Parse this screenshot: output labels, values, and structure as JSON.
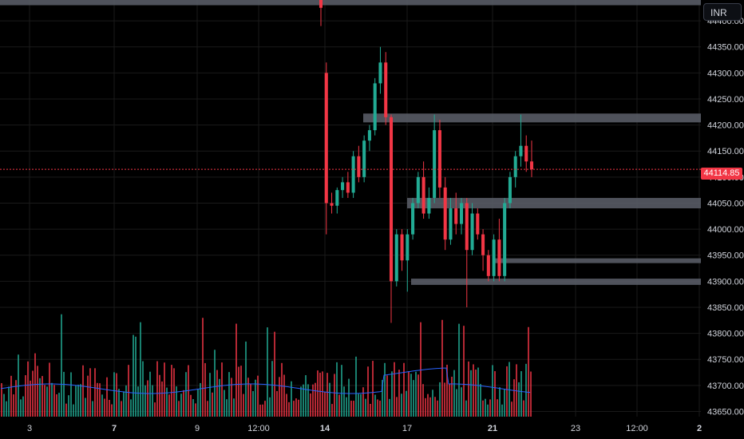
{
  "currency_label": "INR",
  "last_price_label": "44114.85",
  "colors": {
    "up": "#22ab94",
    "down": "#f23645",
    "zone": "#5d606b",
    "ma": "#2962ff",
    "last_price": "#f23645"
  },
  "chart_data": {
    "type": "candlestick",
    "y_axis": {
      "ticks": [
        "43650.00",
        "43700.00",
        "43750.00",
        "43800.00",
        "43850.00",
        "43900.00",
        "43950.00",
        "44000.00",
        "44050.00",
        "44100.00",
        "44150.00",
        "44200.00",
        "44250.00",
        "44300.00",
        "44350.00",
        "44400.00"
      ],
      "range": [
        43640,
        44440
      ]
    },
    "x_axis": {
      "ticks": [
        {
          "label": "3",
          "bold": false
        },
        {
          "label": "7",
          "bold": true
        },
        {
          "label": "9",
          "bold": false
        },
        {
          "label": "12:00",
          "bold": false
        },
        {
          "label": "14",
          "bold": true
        },
        {
          "label": "17",
          "bold": false
        },
        {
          "label": "21",
          "bold": true
        },
        {
          "label": "23",
          "bold": false
        },
        {
          "label": "12:00",
          "bold": false
        },
        {
          "label": "2",
          "bold": true
        }
      ]
    },
    "last_price": 44114.85,
    "zones": [
      {
        "from": 44430,
        "to": 44445,
        "extends": "full"
      },
      {
        "from": 44205,
        "to": 44222
      },
      {
        "from": 44040,
        "to": 44060
      },
      {
        "from": 43937,
        "to": 43944
      },
      {
        "from": 43893,
        "to": 43905
      }
    ],
    "candles": [
      {
        "o": 44440,
        "h": 44450,
        "l": 44390,
        "c": 44425
      },
      {
        "o": 44300,
        "h": 44320,
        "l": 43990,
        "c": 44050
      },
      {
        "o": 44050,
        "h": 44070,
        "l": 44030,
        "c": 44045
      },
      {
        "o": 44045,
        "h": 44080,
        "l": 44030,
        "c": 44075
      },
      {
        "o": 44075,
        "h": 44100,
        "l": 44060,
        "c": 44090
      },
      {
        "o": 44090,
        "h": 44110,
        "l": 44060,
        "c": 44070
      },
      {
        "o": 44070,
        "h": 44150,
        "l": 44060,
        "c": 44140
      },
      {
        "o": 44140,
        "h": 44160,
        "l": 44090,
        "c": 44100
      },
      {
        "o": 44100,
        "h": 44180,
        "l": 44090,
        "c": 44170
      },
      {
        "o": 44170,
        "h": 44200,
        "l": 44150,
        "c": 44190
      },
      {
        "o": 44190,
        "h": 44290,
        "l": 44180,
        "c": 44280
      },
      {
        "o": 44280,
        "h": 44350,
        "l": 44260,
        "c": 44320
      },
      {
        "o": 44320,
        "h": 44340,
        "l": 44200,
        "c": 44215
      },
      {
        "o": 44215,
        "h": 44220,
        "l": 43820,
        "c": 43900
      },
      {
        "o": 43900,
        "h": 44000,
        "l": 43890,
        "c": 43990
      },
      {
        "o": 43990,
        "h": 44000,
        "l": 43920,
        "c": 43940
      },
      {
        "o": 43940,
        "h": 44000,
        "l": 43880,
        "c": 43990
      },
      {
        "o": 43990,
        "h": 44060,
        "l": 43980,
        "c": 44050
      },
      {
        "o": 44050,
        "h": 44110,
        "l": 44040,
        "c": 44100
      },
      {
        "o": 44100,
        "h": 44130,
        "l": 44020,
        "c": 44030
      },
      {
        "o": 44030,
        "h": 44080,
        "l": 44020,
        "c": 44060
      },
      {
        "o": 44060,
        "h": 44220,
        "l": 44050,
        "c": 44190
      },
      {
        "o": 44190,
        "h": 44210,
        "l": 44060,
        "c": 44080
      },
      {
        "o": 44080,
        "h": 44100,
        "l": 43960,
        "c": 43980
      },
      {
        "o": 43980,
        "h": 44060,
        "l": 43970,
        "c": 44040
      },
      {
        "o": 44040,
        "h": 44070,
        "l": 43990,
        "c": 44010
      },
      {
        "o": 44010,
        "h": 44060,
        "l": 43990,
        "c": 44050
      },
      {
        "o": 44050,
        "h": 44060,
        "l": 43850,
        "c": 43960
      },
      {
        "o": 43960,
        "h": 44050,
        "l": 43950,
        "c": 44030
      },
      {
        "o": 44030,
        "h": 44040,
        "l": 43980,
        "c": 43990
      },
      {
        "o": 43990,
        "h": 44000,
        "l": 43920,
        "c": 43950
      },
      {
        "o": 43950,
        "h": 43960,
        "l": 43900,
        "c": 43910
      },
      {
        "o": 43910,
        "h": 43990,
        "l": 43900,
        "c": 43980
      },
      {
        "o": 43980,
        "h": 44020,
        "l": 43900,
        "c": 43910
      },
      {
        "o": 43910,
        "h": 44060,
        "l": 43900,
        "c": 44050
      },
      {
        "o": 44050,
        "h": 44110,
        "l": 44040,
        "c": 44100
      },
      {
        "o": 44100,
        "h": 44150,
        "l": 44080,
        "c": 44140
      },
      {
        "o": 44140,
        "h": 44220,
        "l": 44120,
        "c": 44160
      },
      {
        "o": 44160,
        "h": 44180,
        "l": 44110,
        "c": 44130
      },
      {
        "o": 44130,
        "h": 44170,
        "l": 44100,
        "c": 44114.85
      }
    ]
  }
}
